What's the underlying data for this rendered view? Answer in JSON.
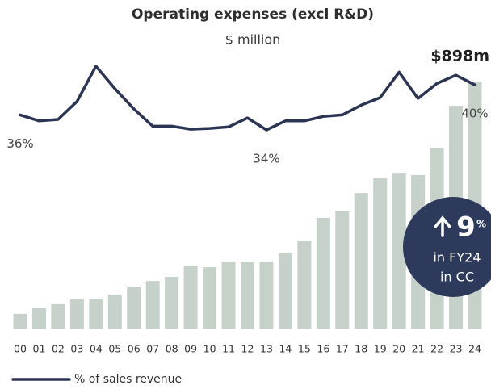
{
  "chart_data": {
    "type": "bar",
    "title": "Operating expenses (excl R&D)",
    "subtitle": "$ million",
    "categories": [
      "00",
      "01",
      "02",
      "03",
      "04",
      "05",
      "06",
      "07",
      "08",
      "09",
      "10",
      "11",
      "12",
      "13",
      "14",
      "15",
      "16",
      "17",
      "18",
      "19",
      "20",
      "21",
      "22",
      "23",
      "24"
    ],
    "series": [
      {
        "type": "bar",
        "color": "#c5d1c9",
        "values": [
          56,
          76,
          91,
          108,
          108,
          126,
          155,
          175,
          190,
          231,
          225,
          243,
          243,
          243,
          278,
          319,
          404,
          430,
          494,
          547,
          567,
          559,
          658,
          810,
          898
        ],
        "value_labels": [
          null,
          null,
          null,
          null,
          null,
          null,
          null,
          null,
          null,
          null,
          null,
          null,
          null,
          null,
          null,
          null,
          null,
          null,
          null,
          null,
          null,
          null,
          null,
          null,
          "$898m"
        ]
      },
      {
        "type": "line",
        "name": "% of sales revenue",
        "color": "#2b3553",
        "values": [
          36,
          35.2,
          35.4,
          37.8,
          42.5,
          39.5,
          36.8,
          34.5,
          34.5,
          34.1,
          34.2,
          34.4,
          35.6,
          34,
          35.2,
          35.2,
          35.8,
          36,
          37.3,
          38.3,
          41.7,
          38.2,
          40.2,
          41.3,
          40
        ],
        "value_labels": [
          "36%",
          null,
          null,
          null,
          null,
          null,
          null,
          null,
          null,
          null,
          null,
          null,
          null,
          "34%",
          null,
          null,
          null,
          null,
          null,
          null,
          null,
          null,
          null,
          null,
          "40%"
        ]
      }
    ],
    "annotation": {
      "value": "9",
      "unit": "%",
      "lines": [
        "in FY24",
        "in CC"
      ]
    },
    "legend": "bottom-left"
  }
}
